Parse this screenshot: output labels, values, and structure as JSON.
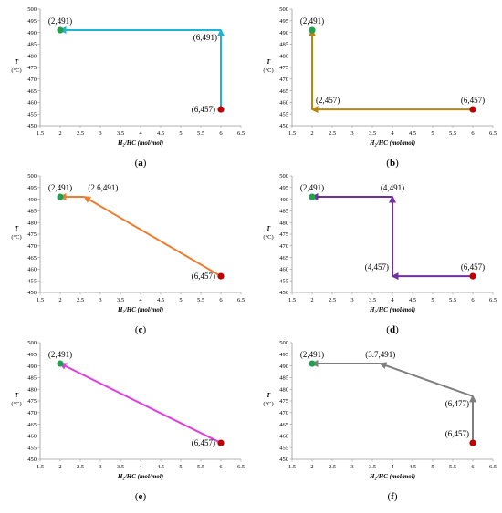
{
  "figure": {
    "y_label": "T",
    "y_unit": "(°C)",
    "x_label": "H₂/HC (mol/mol)"
  },
  "chart_data": [
    {
      "panel": "a",
      "type": "line",
      "xlabel": "H₂/HC (mol/mol)",
      "ylabel": "T (°C)",
      "xlim": [
        1.5,
        6.5
      ],
      "ylim": [
        450,
        500
      ],
      "xticks": [
        "1.5",
        "2",
        "2.5",
        "3",
        "3.5",
        "4",
        "4.5",
        "5",
        "5.5",
        "6",
        "6.5"
      ],
      "yticks": [
        "450",
        "455",
        "460",
        "465",
        "470",
        "475",
        "480",
        "485",
        "490",
        "495",
        "500"
      ],
      "color": "#1fb4d4",
      "path": [
        [
          6,
          457
        ],
        [
          6,
          491
        ],
        [
          2,
          491
        ]
      ],
      "start": {
        "x": 6,
        "y": 457,
        "color": "#c00000"
      },
      "end": {
        "x": 2,
        "y": 491,
        "color": "#22a050"
      },
      "arrow_segments": [
        [
          0,
          1
        ],
        [
          1,
          2
        ]
      ],
      "labels": [
        {
          "text": "(2,491)",
          "x": 2,
          "y": 491,
          "pos": "above"
        },
        {
          "text": "(6,491)",
          "x": 6,
          "y": 491,
          "pos": "below-left"
        },
        {
          "text": "(6,457)",
          "x": 6,
          "y": 457,
          "pos": "left"
        }
      ],
      "caption": "a"
    },
    {
      "panel": "b",
      "type": "line",
      "xlabel": "H₂/HC (mol/mol)",
      "ylabel": "T (°C)",
      "xlim": [
        1.5,
        6.5
      ],
      "ylim": [
        450,
        500
      ],
      "xticks": [
        "1.5",
        "2",
        "2.5",
        "3",
        "3.5",
        "4",
        "4.5",
        "5",
        "5.5",
        "6",
        "6.5"
      ],
      "yticks": [
        "450",
        "455",
        "460",
        "465",
        "470",
        "475",
        "480",
        "485",
        "490",
        "495",
        "500"
      ],
      "color": "#b8860b",
      "path": [
        [
          6,
          457
        ],
        [
          2,
          457
        ],
        [
          2,
          491
        ]
      ],
      "start": {
        "x": 6,
        "y": 457,
        "color": "#c00000"
      },
      "end": {
        "x": 2,
        "y": 491,
        "color": "#22a050"
      },
      "arrow_segments": [
        [
          0,
          1
        ],
        [
          1,
          2
        ]
      ],
      "labels": [
        {
          "text": "(2,491)",
          "x": 2,
          "y": 491,
          "pos": "above"
        },
        {
          "text": "(2,457)",
          "x": 2,
          "y": 457,
          "pos": "above-right"
        },
        {
          "text": "(6,457)",
          "x": 6,
          "y": 457,
          "pos": "above"
        }
      ],
      "caption": "b"
    },
    {
      "panel": "c",
      "type": "line",
      "xlabel": "H₂/HC (mol/mol)",
      "ylabel": "T (°C)",
      "xlim": [
        1.5,
        6.5
      ],
      "ylim": [
        450,
        500
      ],
      "xticks": [
        "1.5",
        "2",
        "2.5",
        "3",
        "3.5",
        "4",
        "4.5",
        "5",
        "5.5",
        "6",
        "6.5"
      ],
      "yticks": [
        "450",
        "455",
        "460",
        "465",
        "470",
        "475",
        "480",
        "485",
        "490",
        "495",
        "500"
      ],
      "color": "#ed7d31",
      "path": [
        [
          6,
          457
        ],
        [
          2.6,
          491
        ],
        [
          2,
          491
        ]
      ],
      "start": {
        "x": 6,
        "y": 457,
        "color": "#c00000"
      },
      "end": {
        "x": 2,
        "y": 491,
        "color": "#22a050"
      },
      "arrow_segments": [
        [
          0,
          1
        ],
        [
          1,
          2
        ]
      ],
      "labels": [
        {
          "text": "(2,491)",
          "x": 2,
          "y": 491,
          "pos": "above"
        },
        {
          "text": "(2.6,491)",
          "x": 2.6,
          "y": 491,
          "pos": "above-right"
        },
        {
          "text": "(6,457)",
          "x": 6,
          "y": 457,
          "pos": "left"
        }
      ],
      "caption": "c"
    },
    {
      "panel": "d",
      "type": "line",
      "xlabel": "H₂/HC (mol/mol)",
      "ylabel": "T (°C)",
      "xlim": [
        1.5,
        6.5
      ],
      "ylim": [
        450,
        500
      ],
      "xticks": [
        "1.5",
        "2",
        "2.5",
        "3",
        "3.5",
        "4",
        "4.5",
        "5",
        "5.5",
        "6",
        "6.5"
      ],
      "yticks": [
        "450",
        "455",
        "460",
        "465",
        "470",
        "475",
        "480",
        "485",
        "490",
        "495",
        "500"
      ],
      "color": "#7030a0",
      "path": [
        [
          6,
          457
        ],
        [
          4,
          457
        ],
        [
          4,
          491
        ],
        [
          2,
          491
        ]
      ],
      "start": {
        "x": 6,
        "y": 457,
        "color": "#c00000"
      },
      "end": {
        "x": 2,
        "y": 491,
        "color": "#22a050"
      },
      "arrow_segments": [
        [
          0,
          1
        ],
        [
          1,
          2
        ],
        [
          2,
          3
        ]
      ],
      "labels": [
        {
          "text": "(2,491)",
          "x": 2,
          "y": 491,
          "pos": "above"
        },
        {
          "text": "(4,491)",
          "x": 4,
          "y": 491,
          "pos": "above"
        },
        {
          "text": "(4,457)",
          "x": 4,
          "y": 457,
          "pos": "above-left"
        },
        {
          "text": "(6,457)",
          "x": 6,
          "y": 457,
          "pos": "above"
        }
      ],
      "caption": "d"
    },
    {
      "panel": "e",
      "type": "line",
      "xlabel": "H₂/HC (mol/mol)",
      "ylabel": "T (°C)",
      "xlim": [
        1.5,
        6.5
      ],
      "ylim": [
        450,
        500
      ],
      "xticks": [
        "1.5",
        "2",
        "2.5",
        "3",
        "3.5",
        "4",
        "4.5",
        "5",
        "5.5",
        "6",
        "6.5"
      ],
      "yticks": [
        "450",
        "455",
        "460",
        "465",
        "470",
        "475",
        "480",
        "485",
        "490",
        "495",
        "500"
      ],
      "color": "#e040e0",
      "path": [
        [
          6,
          457
        ],
        [
          2,
          491
        ]
      ],
      "start": {
        "x": 6,
        "y": 457,
        "color": "#c00000"
      },
      "end": {
        "x": 2,
        "y": 491,
        "color": "#22a050"
      },
      "arrow_segments": [
        [
          0,
          1
        ]
      ],
      "labels": [
        {
          "text": "(2,491)",
          "x": 2,
          "y": 491,
          "pos": "above"
        },
        {
          "text": "(6,457)",
          "x": 6,
          "y": 457,
          "pos": "left"
        }
      ],
      "caption": "e"
    },
    {
      "panel": "f",
      "type": "line",
      "xlabel": "H₂/HC (mol/mol)",
      "ylabel": "T (°C)",
      "xlim": [
        1.5,
        6.5
      ],
      "ylim": [
        450,
        500
      ],
      "xticks": [
        "1.5",
        "2",
        "2.5",
        "3",
        "3.5",
        "4",
        "4.5",
        "5",
        "5.5",
        "6",
        "6.5"
      ],
      "yticks": [
        "450",
        "455",
        "460",
        "465",
        "470",
        "475",
        "480",
        "485",
        "490",
        "495",
        "500"
      ],
      "color": "#7f7f7f",
      "path": [
        [
          6,
          457
        ],
        [
          6,
          477
        ],
        [
          3.7,
          491
        ],
        [
          2,
          491
        ]
      ],
      "start": {
        "x": 6,
        "y": 457,
        "color": "#c00000"
      },
      "end": {
        "x": 2,
        "y": 491,
        "color": "#22a050"
      },
      "arrow_segments": [
        [
          0,
          1
        ],
        [
          1,
          2
        ],
        [
          2,
          3
        ]
      ],
      "labels": [
        {
          "text": "(2,491)",
          "x": 2,
          "y": 491,
          "pos": "above"
        },
        {
          "text": "(3.7,491)",
          "x": 3.7,
          "y": 491,
          "pos": "above"
        },
        {
          "text": "(6,477)",
          "x": 6,
          "y": 477,
          "pos": "below-left"
        },
        {
          "text": "(6,457)",
          "x": 6,
          "y": 457,
          "pos": "above-left"
        }
      ],
      "caption": "f"
    }
  ]
}
